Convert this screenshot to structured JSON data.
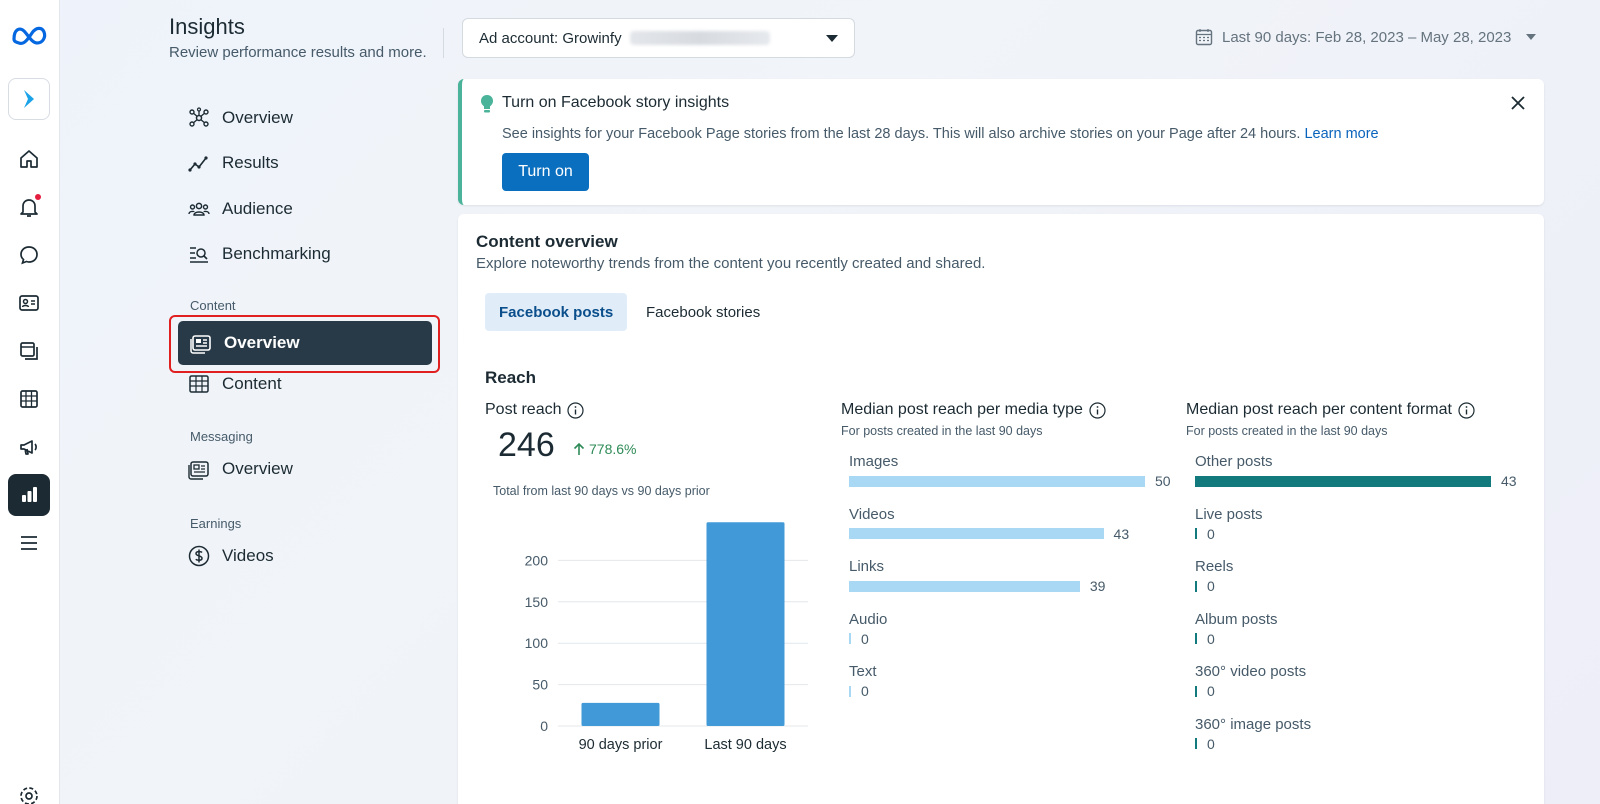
{
  "header": {
    "title": "Insights",
    "subtitle": "Review performance results and more.",
    "ad_account_label": "Ad account: Growinfy",
    "date_range": "Last 90 days: Feb 28, 2023 – May 28, 2023"
  },
  "nav": {
    "items": [
      {
        "label": "Overview",
        "icon": "overview-network-icon"
      },
      {
        "label": "Results",
        "icon": "results-line-icon"
      },
      {
        "label": "Audience",
        "icon": "audience-icon"
      },
      {
        "label": "Benchmarking",
        "icon": "benchmarking-icon"
      }
    ],
    "content_section": "Content",
    "content_items": [
      {
        "label": "Overview",
        "icon": "content-overview-icon",
        "active": true
      },
      {
        "label": "Content",
        "icon": "table-icon"
      }
    ],
    "messaging_section": "Messaging",
    "messaging_items": [
      {
        "label": "Overview",
        "icon": "messaging-overview-icon"
      }
    ],
    "earnings_section": "Earnings",
    "earnings_items": [
      {
        "label": "Videos",
        "icon": "dollar-icon"
      }
    ]
  },
  "rail": {
    "icons": [
      "meta-logo",
      "app-switcher-icon",
      "home-icon",
      "notifications-icon",
      "messages-icon",
      "contacts-icon",
      "content-library-icon",
      "planner-icon",
      "ads-icon",
      "insights-icon",
      "menu-icon",
      "settings-icon"
    ]
  },
  "banner": {
    "title": "Turn on Facebook story insights",
    "text": "See insights for your Facebook Page stories from the last 28 days. This will also archive stories on your Page after 24 hours.",
    "link": "Learn more",
    "button": "Turn on",
    "accent": "#4bb39a"
  },
  "content_overview": {
    "title": "Content overview",
    "subtitle": "Explore noteworthy trends from the content you recently created and shared.",
    "tabs": [
      {
        "label": "Facebook posts",
        "active": true
      },
      {
        "label": "Facebook stories",
        "active": false
      }
    ],
    "section": "Reach",
    "post_reach": {
      "label": "Post reach",
      "value": "246",
      "change": "778.6%",
      "note": "Total from last 90 days vs 90 days prior"
    },
    "media_type": {
      "label": "Median post reach per media type",
      "sub": "For posts created in the last 90 days",
      "color": "#a8d8f4",
      "items": [
        {
          "label": "Images",
          "value": 50
        },
        {
          "label": "Videos",
          "value": 43
        },
        {
          "label": "Links",
          "value": 39
        },
        {
          "label": "Audio",
          "value": 0
        },
        {
          "label": "Text",
          "value": 0
        }
      ]
    },
    "content_format": {
      "label": "Median post reach per content format",
      "sub": "For posts created in the last 90 days",
      "color": "#12797c",
      "items": [
        {
          "label": "Other posts",
          "value": 43
        },
        {
          "label": "Live posts",
          "value": 0
        },
        {
          "label": "Reels",
          "value": 0
        },
        {
          "label": "Album posts",
          "value": 0
        },
        {
          "label": "360° video posts",
          "value": 0
        },
        {
          "label": "360° image posts",
          "value": 0
        }
      ]
    }
  },
  "chart_data": {
    "type": "bar",
    "categories": [
      "90 days prior",
      "Last 90 days"
    ],
    "values": [
      28,
      246
    ],
    "ylim": [
      0,
      250
    ],
    "yticks": [
      0,
      50,
      100,
      150,
      200
    ],
    "color": "#4199d8",
    "grid": true
  }
}
